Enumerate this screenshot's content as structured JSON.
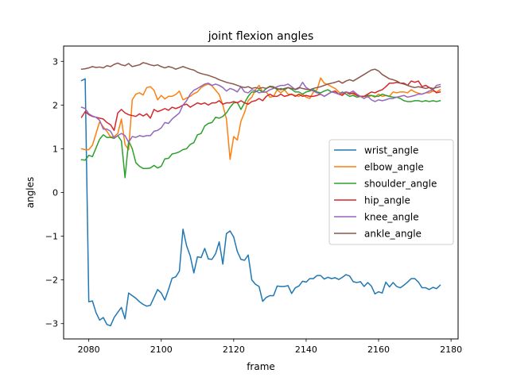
{
  "chart_data": {
    "type": "line",
    "title": "joint flexion angles",
    "xlabel": "frame",
    "ylabel": "angles",
    "xlim": [
      2073.05,
      2181.95
    ],
    "ylim": [
      -3.35,
      3.35
    ],
    "xticks": [
      2080,
      2100,
      2120,
      2140,
      2160,
      2180
    ],
    "yticks": [
      -3,
      -2,
      -1,
      0,
      1,
      2,
      3
    ],
    "grid": false,
    "legend_position": "center-right",
    "x_start": 2078,
    "series": [
      {
        "name": "wrist_angle",
        "color": "#1f77b4",
        "values": [
          2.56,
          2.6,
          -2.5,
          -2.48,
          -2.75,
          -2.92,
          -2.86,
          -3.02,
          -3.05,
          -2.86,
          -2.74,
          -2.63,
          -2.89,
          -2.3,
          -2.36,
          -2.42,
          -2.5,
          -2.56,
          -2.6,
          -2.58,
          -2.4,
          -2.22,
          -2.3,
          -2.46,
          -2.22,
          -1.96,
          -1.93,
          -1.8,
          -0.84,
          -1.22,
          -1.45,
          -1.84,
          -1.47,
          -1.49,
          -1.28,
          -1.52,
          -1.53,
          -1.4,
          -1.13,
          -1.64,
          -0.94,
          -0.88,
          -1.02,
          -1.35,
          -1.53,
          -1.55,
          -1.43,
          -2.0,
          -2.1,
          -2.15,
          -2.49,
          -2.4,
          -2.36,
          -2.36,
          -2.14,
          -2.15,
          -2.15,
          -2.13,
          -2.31,
          -2.18,
          -2.14,
          -2.03,
          -2.05,
          -1.97,
          -1.97,
          -1.9,
          -1.9,
          -1.98,
          -1.94,
          -1.97,
          -1.95,
          -1.99,
          -1.94,
          -1.88,
          -1.91,
          -2.04,
          -2.06,
          -2.04,
          -2.15,
          -2.06,
          -2.14,
          -2.32,
          -2.27,
          -2.3,
          -2.05,
          -2.16,
          -2.06,
          -2.15,
          -2.18,
          -2.12,
          -2.05,
          -1.97,
          -1.97,
          -2.05,
          -2.18,
          -2.18,
          -2.22,
          -2.17,
          -2.2,
          -2.12
        ]
      },
      {
        "name": "elbow_angle",
        "color": "#ff7f0e",
        "values": [
          1.0,
          0.98,
          0.98,
          1.08,
          1.35,
          1.62,
          1.5,
          1.4,
          1.27,
          1.28,
          1.35,
          1.68,
          1.1,
          0.98,
          2.12,
          2.25,
          2.28,
          2.23,
          2.4,
          2.42,
          2.34,
          2.12,
          2.22,
          2.14,
          2.2,
          2.2,
          2.24,
          2.32,
          2.12,
          2.16,
          2.2,
          2.26,
          2.3,
          2.4,
          2.45,
          2.48,
          2.44,
          2.34,
          2.24,
          2.0,
          1.68,
          0.76,
          1.28,
          1.2,
          1.63,
          1.83,
          2.1,
          2.18,
          2.35,
          2.45,
          2.29,
          2.3,
          2.18,
          2.2,
          2.35,
          2.28,
          2.35,
          2.25,
          2.24,
          2.22,
          2.2,
          2.25,
          2.18,
          2.15,
          2.3,
          2.35,
          2.62,
          2.5,
          2.47,
          2.42,
          2.38,
          2.3,
          2.25,
          2.3,
          2.28,
          2.25,
          2.22,
          2.2,
          2.2,
          2.18,
          2.22,
          2.18,
          2.25,
          2.2,
          2.22,
          2.2,
          2.3,
          2.28,
          2.3,
          2.3,
          2.28,
          2.35,
          2.3,
          2.27,
          2.25,
          2.28,
          2.28,
          2.32,
          2.3,
          2.35
        ]
      },
      {
        "name": "shoulder_angle",
        "color": "#2ca02c",
        "values": [
          0.75,
          0.74,
          0.85,
          0.82,
          1.02,
          1.22,
          1.32,
          1.26,
          1.26,
          1.24,
          1.3,
          1.18,
          0.34,
          1.18,
          1.0,
          0.68,
          0.6,
          0.55,
          0.55,
          0.56,
          0.62,
          0.56,
          0.6,
          0.77,
          0.78,
          0.88,
          0.9,
          0.93,
          0.98,
          1.0,
          1.1,
          1.14,
          1.32,
          1.35,
          1.52,
          1.58,
          1.6,
          1.72,
          1.7,
          1.74,
          1.82,
          1.95,
          2.05,
          2.06,
          1.9,
          2.05,
          2.2,
          2.3,
          2.3,
          2.35,
          2.3,
          2.38,
          2.43,
          2.42,
          2.35,
          2.38,
          2.35,
          2.4,
          2.36,
          2.3,
          2.3,
          2.25,
          2.3,
          2.32,
          2.35,
          2.3,
          2.28,
          2.32,
          2.35,
          2.3,
          2.28,
          2.25,
          2.3,
          2.25,
          2.2,
          2.22,
          2.18,
          2.2,
          2.2,
          2.22,
          2.22,
          2.2,
          2.2,
          2.25,
          2.22,
          2.2,
          2.18,
          2.18,
          2.15,
          2.1,
          2.08,
          2.08,
          2.1,
          2.1,
          2.08,
          2.1,
          2.08,
          2.1,
          2.08,
          2.1
        ]
      },
      {
        "name": "hip_angle",
        "color": "#d62728",
        "values": [
          1.72,
          1.85,
          1.78,
          1.74,
          1.72,
          1.7,
          1.68,
          1.6,
          1.55,
          1.42,
          1.82,
          1.9,
          1.82,
          1.78,
          1.76,
          1.74,
          1.8,
          1.75,
          1.8,
          1.7,
          1.9,
          1.85,
          1.88,
          1.92,
          1.88,
          1.95,
          1.92,
          1.95,
          2.0,
          2.02,
          1.95,
          2.0,
          2.05,
          2.02,
          2.05,
          2.0,
          2.05,
          2.05,
          2.1,
          2.02,
          2.05,
          2.05,
          2.08,
          2.05,
          2.1,
          2.05,
          2.02,
          2.08,
          2.1,
          2.15,
          2.1,
          2.2,
          2.25,
          2.2,
          2.2,
          2.25,
          2.2,
          2.22,
          2.25,
          2.2,
          2.25,
          2.2,
          2.22,
          2.2,
          2.2,
          2.22,
          2.25,
          2.2,
          2.25,
          2.3,
          2.32,
          2.25,
          2.22,
          2.3,
          2.25,
          2.28,
          2.22,
          2.2,
          2.2,
          2.25,
          2.3,
          2.28,
          2.32,
          2.35,
          2.42,
          2.5,
          2.5,
          2.52,
          2.5,
          2.5,
          2.45,
          2.55,
          2.52,
          2.55,
          2.42,
          2.45,
          2.4,
          2.35,
          2.28,
          2.3
        ]
      },
      {
        "name": "knee_angle",
        "color": "#9467bd",
        "values": [
          1.95,
          1.92,
          1.8,
          1.75,
          1.72,
          1.65,
          1.45,
          1.45,
          1.4,
          1.25,
          1.3,
          1.35,
          1.3,
          1.15,
          1.28,
          1.26,
          1.3,
          1.28,
          1.3,
          1.3,
          1.4,
          1.42,
          1.48,
          1.6,
          1.58,
          1.68,
          1.75,
          1.82,
          2.0,
          2.1,
          2.25,
          2.34,
          2.38,
          2.43,
          2.48,
          2.5,
          2.45,
          2.48,
          2.45,
          2.4,
          2.32,
          2.38,
          2.35,
          2.3,
          2.42,
          2.3,
          2.28,
          2.35,
          2.33,
          2.28,
          2.3,
          2.3,
          2.35,
          2.38,
          2.42,
          2.45,
          2.45,
          2.48,
          2.42,
          2.35,
          2.38,
          2.52,
          2.4,
          2.35,
          2.32,
          2.28,
          2.25,
          2.2,
          2.25,
          2.3,
          2.28,
          2.25,
          2.28,
          2.3,
          2.28,
          2.32,
          2.25,
          2.2,
          2.15,
          2.2,
          2.12,
          2.08,
          2.12,
          2.1,
          2.12,
          2.15,
          2.15,
          2.18,
          2.2,
          2.22,
          2.18,
          2.2,
          2.22,
          2.25,
          2.25,
          2.28,
          2.32,
          2.35,
          2.45,
          2.47
        ]
      },
      {
        "name": "ankle_angle",
        "color": "#8c564b",
        "values": [
          2.82,
          2.83,
          2.85,
          2.88,
          2.86,
          2.87,
          2.85,
          2.9,
          2.88,
          2.93,
          2.96,
          2.92,
          2.9,
          2.95,
          2.88,
          2.9,
          2.92,
          2.97,
          2.95,
          2.92,
          2.9,
          2.92,
          2.88,
          2.85,
          2.88,
          2.86,
          2.82,
          2.85,
          2.88,
          2.85,
          2.82,
          2.8,
          2.75,
          2.72,
          2.7,
          2.68,
          2.65,
          2.62,
          2.58,
          2.55,
          2.52,
          2.5,
          2.48,
          2.45,
          2.42,
          2.4,
          2.42,
          2.38,
          2.4,
          2.38,
          2.4,
          2.38,
          2.42,
          2.4,
          2.38,
          2.35,
          2.38,
          2.4,
          2.38,
          2.36,
          2.4,
          2.38,
          2.36,
          2.35,
          2.38,
          2.4,
          2.42,
          2.45,
          2.48,
          2.5,
          2.52,
          2.55,
          2.5,
          2.55,
          2.58,
          2.55,
          2.6,
          2.65,
          2.7,
          2.75,
          2.8,
          2.82,
          2.78,
          2.7,
          2.65,
          2.6,
          2.58,
          2.55,
          2.5,
          2.48,
          2.45,
          2.42,
          2.4,
          2.42,
          2.4,
          2.38,
          2.4,
          2.38,
          2.4,
          2.42
        ]
      }
    ]
  }
}
